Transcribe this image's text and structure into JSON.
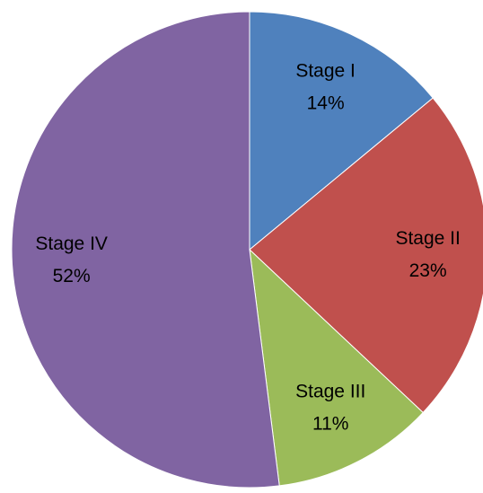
{
  "chart_data": {
    "type": "pie",
    "categories": [
      "Stage I",
      "Stage II",
      "Stage III",
      "Stage IV"
    ],
    "values": [
      14,
      23,
      11,
      52
    ],
    "value_labels": [
      "14%",
      "23%",
      "11%",
      "52%"
    ],
    "colors": [
      "#4f81bd",
      "#c0504d",
      "#9bbb59",
      "#8064a2"
    ]
  }
}
